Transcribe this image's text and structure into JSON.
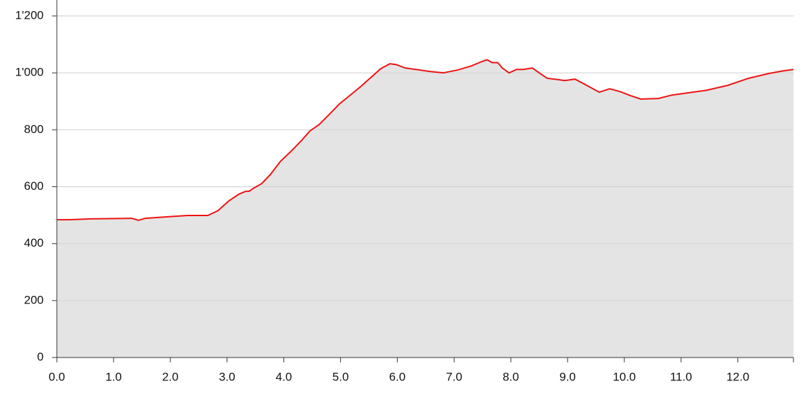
{
  "chart_data": {
    "type": "area",
    "x": [
      0,
      0.22,
      0.59,
      1.32,
      1.44,
      1.56,
      1.93,
      2.3,
      2.66,
      2.84,
      3.03,
      3.21,
      3.33,
      3.39,
      3.46,
      3.61,
      3.76,
      3.94,
      4.13,
      4.31,
      4.46,
      4.62,
      4.8,
      4.98,
      5.16,
      5.35,
      5.53,
      5.71,
      5.87,
      5.98,
      6.14,
      6.33,
      6.57,
      6.81,
      7.06,
      7.3,
      7.48,
      7.58,
      7.67,
      7.77,
      7.85,
      7.97,
      8.1,
      8.22,
      8.38,
      8.5,
      8.64,
      8.77,
      8.95,
      9.13,
      9.31,
      9.56,
      9.74,
      9.93,
      10.11,
      10.29,
      10.6,
      10.84,
      11.09,
      11.45,
      11.82,
      12.19,
      12.55,
      12.8,
      12.98
    ],
    "values": [
      484,
      484,
      487,
      489,
      482,
      489,
      494,
      499,
      499,
      516,
      550,
      574,
      584,
      584,
      594,
      611,
      642,
      689,
      725,
      762,
      796,
      818,
      854,
      891,
      920,
      951,
      983,
      1015,
      1032,
      1029,
      1017,
      1012,
      1005,
      1000,
      1010,
      1024,
      1039,
      1046,
      1036,
      1036,
      1017,
      1000,
      1012,
      1012,
      1017,
      1000,
      981,
      978,
      973,
      978,
      959,
      932,
      944,
      934,
      920,
      908,
      910,
      922,
      929,
      939,
      956,
      981,
      998,
      1007,
      1012
    ],
    "color": "#ee1111",
    "fill": "#e4e4e4",
    "xlim": [
      0,
      12.98
    ],
    "ylim": [
      0,
      1200
    ],
    "xticks": [
      {
        "value": 0,
        "label": "0.0"
      },
      {
        "value": 1,
        "label": "1.0"
      },
      {
        "value": 2,
        "label": "2.0"
      },
      {
        "value": 3,
        "label": "3.0"
      },
      {
        "value": 4,
        "label": "4.0"
      },
      {
        "value": 5,
        "label": "5.0"
      },
      {
        "value": 6,
        "label": "6.0"
      },
      {
        "value": 7,
        "label": "7.0"
      },
      {
        "value": 8,
        "label": "8.0"
      },
      {
        "value": 9,
        "label": "9.0"
      },
      {
        "value": 10,
        "label": "10.0"
      },
      {
        "value": 11,
        "label": "11.0"
      },
      {
        "value": 12,
        "label": "12.0"
      }
    ],
    "yticks": [
      0,
      200,
      400,
      600,
      800,
      {
        "value": 1000,
        "label": "1'000"
      },
      {
        "value": 1200,
        "label": "1'200"
      }
    ],
    "grid": true
  }
}
